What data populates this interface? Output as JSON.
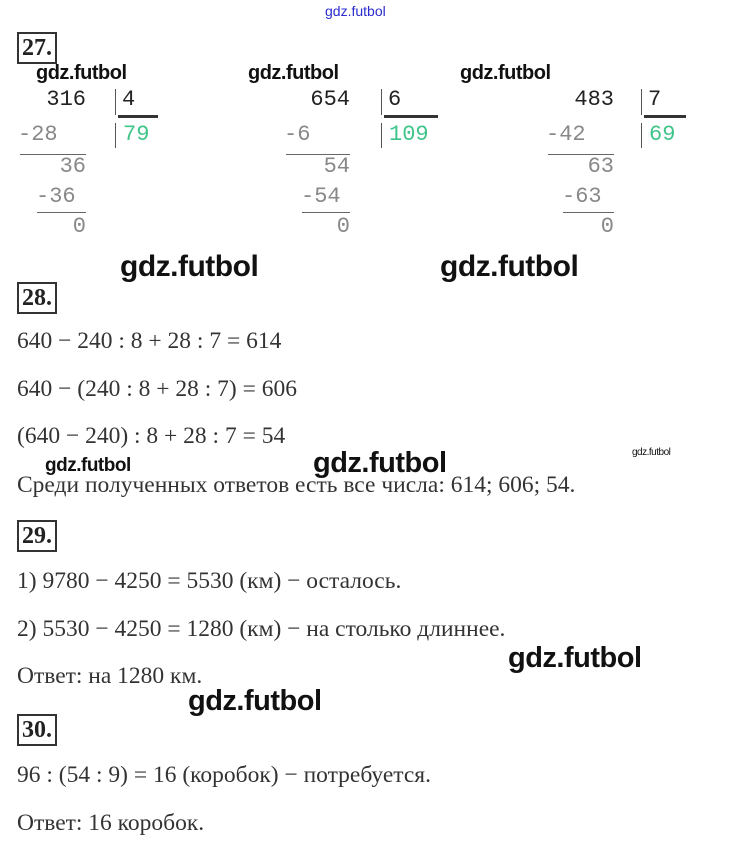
{
  "watermark": "gdz.futbol",
  "tasks": {
    "t27": {
      "number": "27.",
      "divisions": [
        {
          "dividend": "316",
          "divisor": "4",
          "quotient": "79",
          "steps": [
            "-28",
            "36",
            "-36",
            "0"
          ]
        },
        {
          "dividend": "654",
          "divisor": "6",
          "quotient": "109",
          "steps": [
            "-6",
            "54",
            "-54",
            "0"
          ]
        },
        {
          "dividend": "483",
          "divisor": "7",
          "quotient": "69",
          "steps": [
            "-42",
            "63",
            "-63",
            "0"
          ]
        }
      ]
    },
    "t28": {
      "number": "28.",
      "lines": [
        "640 − 240 : 8 + 28 : 7 = 614",
        "640 − (240 : 8 + 28 : 7) = 606",
        "(640 − 240) : 8 + 28 : 7 = 54",
        "Среди полученных ответов есть все числа:  614;  606;  54."
      ]
    },
    "t29": {
      "number": "29.",
      "lines": [
        "1) 9780 − 4250 = 5530 (км) − осталось.",
        "2) 5530 − 4250 = 1280 (км) − на столько длиннее.",
        "Ответ: на 1280 км."
      ]
    },
    "t30": {
      "number": "30.",
      "lines": [
        "96 : (54 : 9) = 16 (коробок) − потребуется.",
        "Ответ:  16 коробок."
      ]
    }
  }
}
